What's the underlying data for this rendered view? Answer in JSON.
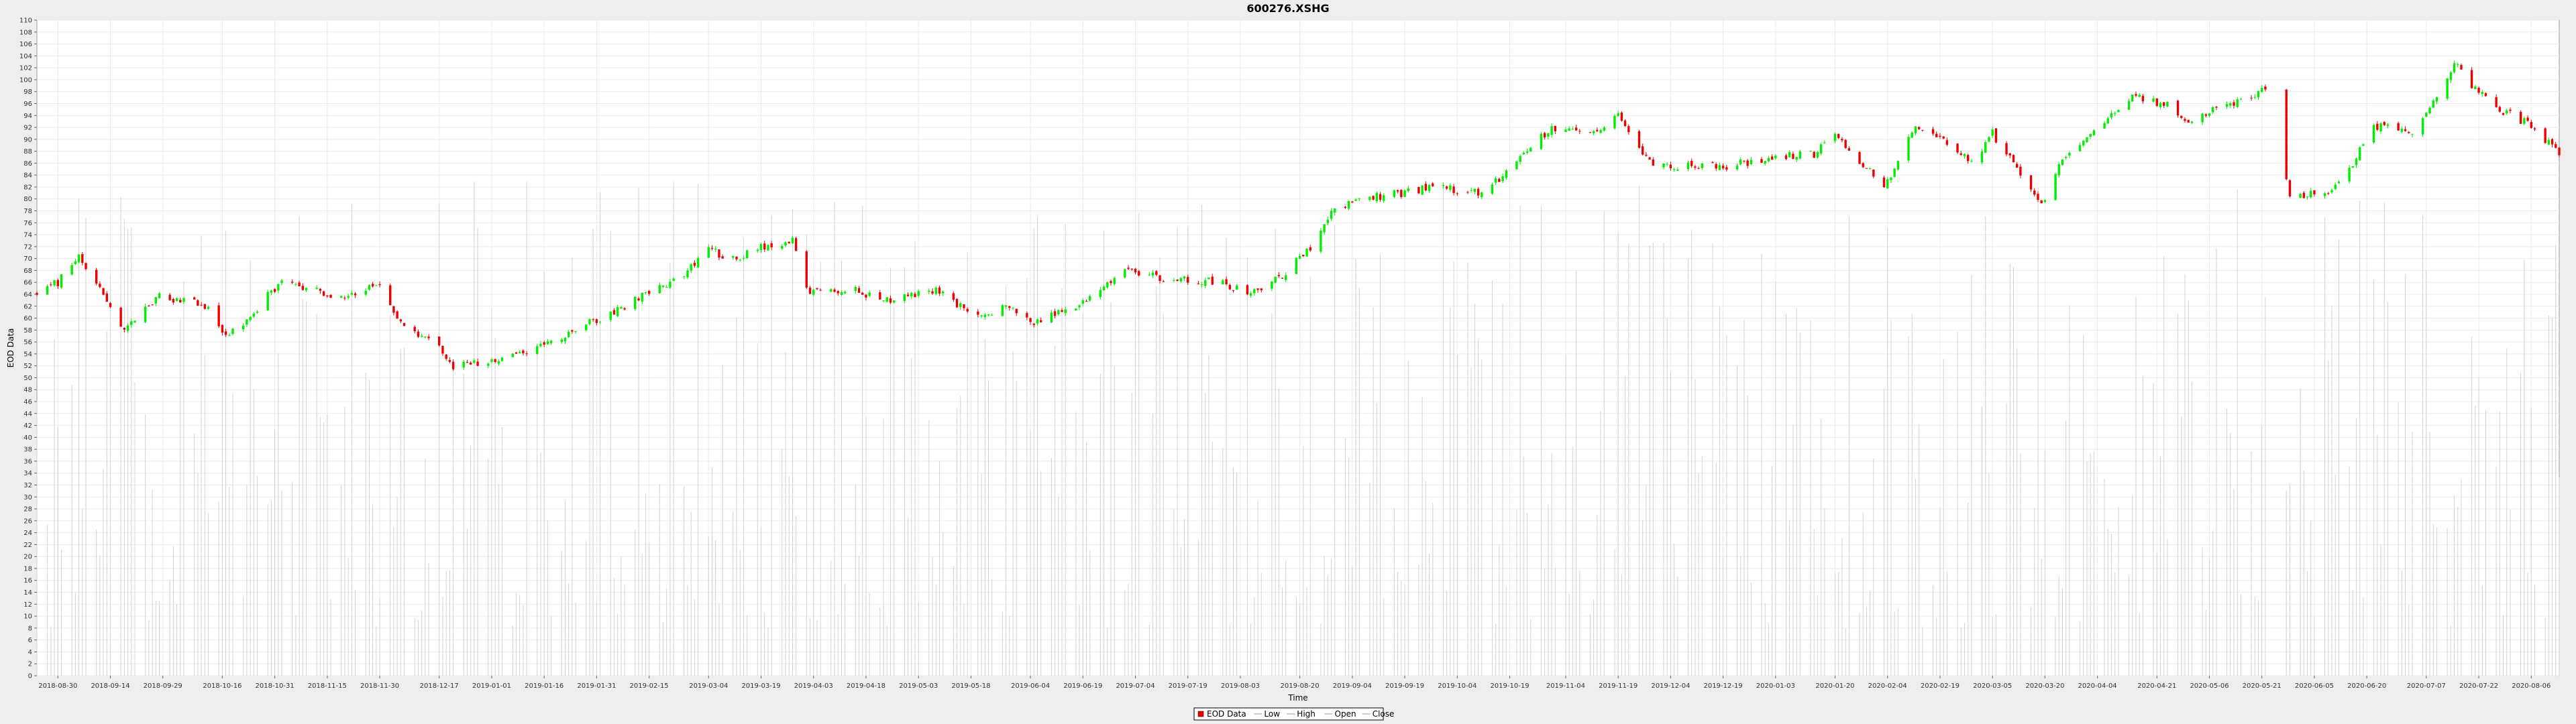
{
  "chart_data": {
    "type": "candlestick",
    "title": "600276.XSHG",
    "xlabel": "Time",
    "ylabel": "EOD Data",
    "ylim": [
      0,
      110
    ],
    "y_ticks": [
      0,
      2,
      4,
      6,
      8,
      10,
      12,
      14,
      16,
      18,
      20,
      22,
      24,
      26,
      28,
      30,
      32,
      34,
      36,
      38,
      40,
      42,
      44,
      46,
      48,
      50,
      52,
      54,
      56,
      58,
      60,
      62,
      64,
      66,
      68,
      70,
      72,
      74,
      76,
      78,
      80,
      82,
      84,
      86,
      88,
      90,
      92,
      94,
      96,
      98,
      100,
      102,
      104,
      106,
      108,
      110
    ],
    "x_range": [
      "2018-08-24",
      "2020-08-14"
    ],
    "x_tick_labels": [
      "2018-08-30",
      "2018-09-14",
      "2018-09-29",
      "2018-10-16",
      "2018-10-31",
      "2018-11-15",
      "2018-11-30",
      "2018-12-17",
      "2019-01-01",
      "2019-01-16",
      "2019-01-31",
      "2019-02-15",
      "2019-03-04",
      "2019-03-19",
      "2019-04-03",
      "2019-04-18",
      "2019-05-03",
      "2019-05-18",
      "2019-06-04",
      "2019-06-19",
      "2019-07-04",
      "2019-07-19",
      "2019-08-03",
      "2019-08-20",
      "2019-09-04",
      "2019-09-19",
      "2019-10-04",
      "2019-10-19",
      "2019-11-04",
      "2019-11-19",
      "2019-12-04",
      "2019-12-19",
      "2020-01-03",
      "2020-01-20",
      "2020-02-04",
      "2020-02-19",
      "2020-03-05",
      "2020-03-20",
      "2020-04-04",
      "2020-04-21",
      "2020-05-06",
      "2020-05-21",
      "2020-06-05",
      "2020-06-20",
      "2020-07-07",
      "2020-07-22",
      "2020-08-06"
    ],
    "grid": true,
    "legend_position": "bottom-center",
    "legend": [
      "EOD Data",
      "Low",
      "High",
      "Open",
      "Close"
    ],
    "colors": {
      "up": "#00ee00",
      "down": "#ee0000",
      "volume": "#d2d2d2",
      "plot_background": "#ffffff",
      "gridline": "#ebebeb",
      "page_background": "#eeeeee"
    },
    "price_path": [
      [
        "2018-08-24",
        64
      ],
      [
        "2018-08-30",
        66
      ],
      [
        "2018-09-05",
        70.5
      ],
      [
        "2018-09-10",
        66
      ],
      [
        "2018-09-17",
        58
      ],
      [
        "2018-09-28",
        63.5
      ],
      [
        "2018-10-12",
        62
      ],
      [
        "2018-10-16",
        57
      ],
      [
        "2018-10-22",
        58.5
      ],
      [
        "2018-10-30",
        64.5
      ],
      [
        "2018-11-02",
        66
      ],
      [
        "2018-11-20",
        63.5
      ],
      [
        "2018-11-30",
        66
      ],
      [
        "2018-12-06",
        59
      ],
      [
        "2018-12-17",
        55.5
      ],
      [
        "2018-12-21",
        52
      ],
      [
        "2019-01-04",
        53
      ],
      [
        "2019-01-25",
        58
      ],
      [
        "2019-02-11",
        63
      ],
      [
        "2019-02-25",
        67
      ],
      [
        "2019-03-04",
        72
      ],
      [
        "2019-03-10",
        69.5
      ],
      [
        "2019-03-20",
        72
      ],
      [
        "2019-03-28",
        73
      ],
      [
        "2019-04-02",
        64
      ],
      [
        "2019-04-12",
        65
      ],
      [
        "2019-04-26",
        63
      ],
      [
        "2019-05-08",
        64.5
      ],
      [
        "2019-05-20",
        60.5
      ],
      [
        "2019-05-28",
        62
      ],
      [
        "2019-06-05",
        59
      ],
      [
        "2019-06-20",
        63
      ],
      [
        "2019-07-02",
        68
      ],
      [
        "2019-07-12",
        66.5
      ],
      [
        "2019-07-29",
        66
      ],
      [
        "2019-08-06",
        64
      ],
      [
        "2019-08-15",
        67
      ],
      [
        "2019-08-23",
        72
      ],
      [
        "2019-08-28",
        77
      ],
      [
        "2019-09-05",
        80
      ],
      [
        "2019-09-18",
        81
      ],
      [
        "2019-09-26",
        82
      ],
      [
        "2019-10-11",
        81
      ],
      [
        "2019-10-19",
        85
      ],
      [
        "2019-10-31",
        92
      ],
      [
        "2019-11-12",
        91.5
      ],
      [
        "2019-11-19",
        94
      ],
      [
        "2019-11-28",
        86
      ],
      [
        "2019-12-04",
        85.5
      ],
      [
        "2019-12-20",
        85.5
      ],
      [
        "2020-01-03",
        87
      ],
      [
        "2020-01-14",
        87.5
      ],
      [
        "2020-01-20",
        91
      ],
      [
        "2020-02-03",
        82
      ],
      [
        "2020-02-12",
        92
      ],
      [
        "2020-02-20",
        90
      ],
      [
        "2020-02-28",
        86
      ],
      [
        "2020-03-05",
        91
      ],
      [
        "2020-03-12",
        85
      ],
      [
        "2020-03-19",
        79
      ],
      [
        "2020-03-24",
        86
      ],
      [
        "2020-04-03",
        92
      ],
      [
        "2020-04-14",
        97
      ],
      [
        "2020-04-24",
        96
      ],
      [
        "2020-04-30",
        93
      ],
      [
        "2020-05-08",
        95
      ],
      [
        "2020-05-20",
        98
      ],
      [
        "2020-05-23",
        98
      ],
      [
        "2020-05-29",
        80.5
      ],
      [
        "2020-06-08",
        81
      ],
      [
        "2020-06-15",
        85
      ],
      [
        "2020-06-22",
        92
      ],
      [
        "2020-06-28",
        92
      ],
      [
        "2020-07-03",
        91
      ],
      [
        "2020-07-10",
        97
      ],
      [
        "2020-07-15",
        103
      ],
      [
        "2020-07-20",
        99
      ],
      [
        "2020-07-28",
        95
      ],
      [
        "2020-08-04",
        93
      ],
      [
        "2020-08-14",
        88
      ]
    ],
    "gaps": [
      [
        "2020-05-25",
        "2020-05-27"
      ]
    ],
    "volume_range": [
      8,
      83
    ]
  }
}
